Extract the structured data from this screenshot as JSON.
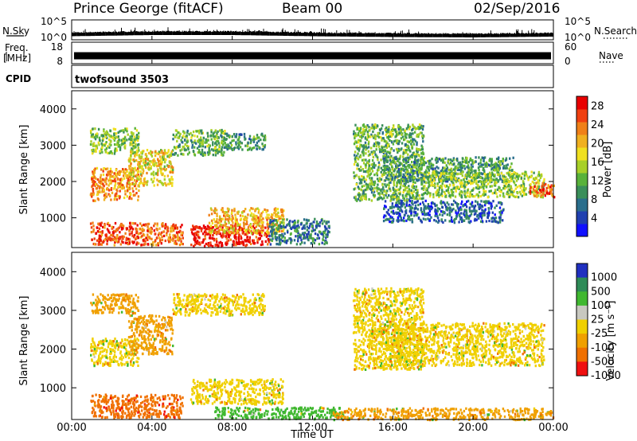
{
  "header": {
    "station": "Prince George (fitACF)",
    "beam": "Beam 00",
    "date": "02/Sep/2016"
  },
  "strip_labels": {
    "nsky": "N.Sky",
    "nsearch": "N.Search",
    "freq_line1": "Freq.",
    "freq_line2": "[MHz]",
    "nave": "Nave",
    "cpid": "CPID",
    "program": "twofsound 3503"
  },
  "colors": {
    "axis": "#000000",
    "background": "#ffffff",
    "ground_scatter": "#c8c8c0"
  },
  "chart_data": [
    {
      "type": "line",
      "panel": "noise",
      "left_axis_label": "N.Sky",
      "right_axis_label": "N.Search",
      "left_ticks": [
        "10^5",
        "10^0"
      ],
      "right_ticks": [
        "10^5",
        "10^0"
      ],
      "ylim": [
        0,
        5
      ],
      "yscale": "log",
      "x": [
        "00:00",
        "04:00",
        "08:00",
        "12:00",
        "16:00",
        "20:00",
        "00:00"
      ],
      "series": [
        {
          "values": [
            1.3,
            1.6,
            1.6,
            1.3,
            1.1,
            1.0,
            1.2
          ]
        }
      ]
    },
    {
      "type": "line",
      "panel": "frequency-nave",
      "left_axis_label": "Freq. [MHz]",
      "right_axis_label": "Nave",
      "left_ticks": [
        "18",
        "8"
      ],
      "right_ticks": [
        "60",
        "0"
      ],
      "ylim_freq": [
        8,
        18
      ],
      "ylim_nave": [
        0,
        60
      ],
      "x": [
        "00:00",
        "04:00",
        "08:00",
        "12:00",
        "16:00",
        "20:00",
        "00:00"
      ],
      "series": [
        {
          "values": [
            11.5,
            11.5,
            11.5,
            11.5,
            11.5,
            11.5,
            11.5
          ]
        }
      ]
    },
    {
      "type": "heatmap",
      "panel": "power",
      "ylabel": "Slant Range [km]",
      "yticks": [
        "1000",
        "2000",
        "3000",
        "4000"
      ],
      "ylim": [
        180,
        4500
      ],
      "xlim": [
        0,
        24
      ],
      "colorbar_label": "Power [dB]",
      "colorbar_ticks": [
        "4",
        "8",
        "12",
        "16",
        "20",
        "24",
        "28"
      ],
      "colorbar_range": [
        0,
        30
      ],
      "colorbar_colors": [
        "#1010ff",
        "#2040b0",
        "#2a6e8c",
        "#3a8f5a",
        "#58b23a",
        "#a8d028",
        "#f0e020",
        "#f0b020",
        "#f08018",
        "#f04010",
        "#e80000"
      ],
      "regions": [
        {
          "t0": 0.9,
          "t1": 3.3,
          "r0": 1500,
          "r1": 2400,
          "v": 22
        },
        {
          "t0": 0.9,
          "t1": 3.3,
          "r0": 2800,
          "r1": 3500,
          "v": 14
        },
        {
          "t0": 2.8,
          "t1": 5.0,
          "r0": 1900,
          "r1": 2900,
          "v": 18
        },
        {
          "t0": 5.0,
          "t1": 7.6,
          "r0": 2750,
          "r1": 3450,
          "v": 12
        },
        {
          "t0": 7.6,
          "t1": 9.6,
          "r0": 2900,
          "r1": 3350,
          "v": 10
        },
        {
          "t0": 0.9,
          "t1": 3.3,
          "r0": 280,
          "r1": 900,
          "v": 26
        },
        {
          "t0": 3.3,
          "t1": 5.5,
          "r0": 280,
          "r1": 900,
          "v": 24
        },
        {
          "t0": 5.9,
          "t1": 9.8,
          "r0": 250,
          "r1": 820,
          "v": 29
        },
        {
          "t0": 6.8,
          "t1": 10.6,
          "r0": 600,
          "r1": 1300,
          "v": 20
        },
        {
          "t0": 9.8,
          "t1": 12.8,
          "r0": 300,
          "r1": 1000,
          "v": 8
        },
        {
          "t0": 14.0,
          "t1": 17.5,
          "r0": 1500,
          "r1": 3600,
          "v": 12
        },
        {
          "t0": 15.5,
          "t1": 22.0,
          "r0": 2000,
          "r1": 2700,
          "v": 10
        },
        {
          "t0": 17.5,
          "t1": 23.5,
          "r0": 1600,
          "r1": 2300,
          "v": 14
        },
        {
          "t0": 15.5,
          "t1": 21.5,
          "r0": 900,
          "r1": 1500,
          "v": 6
        },
        {
          "t0": 22.8,
          "t1": 24.0,
          "r0": 1600,
          "r1": 2000,
          "v": 24
        }
      ]
    },
    {
      "type": "heatmap",
      "panel": "velocity",
      "ylabel": "Slant Range [km]",
      "yticks": [
        "1000",
        "2000",
        "3000",
        "4000"
      ],
      "ylim": [
        180,
        4500
      ],
      "xlim": [
        0,
        24
      ],
      "xticks": [
        "00:00",
        "04:00",
        "08:00",
        "12:00",
        "16:00",
        "20:00",
        "00:00"
      ],
      "xlabel": "Time UT",
      "colorbar_label": "Velocity [m s⁻¹]",
      "colorbar_ticks": [
        "1000",
        "500",
        "100",
        "25",
        "-25",
        "-100",
        "-500",
        "-1000"
      ],
      "colorbar_colors": [
        "#2030c0",
        "#2e8b57",
        "#40b830",
        "#c8c8c0",
        "#f0d000",
        "#f0a000",
        "#f07000",
        "#f01010"
      ],
      "regions": [
        {
          "t0": 0.9,
          "t1": 3.3,
          "r0": 1600,
          "r1": 2300,
          "v": 0
        },
        {
          "t0": 0.9,
          "t1": 3.3,
          "r0": 2950,
          "r1": 3450,
          "v": -40
        },
        {
          "t0": 2.8,
          "t1": 5.0,
          "r0": 1900,
          "r1": 2900,
          "v": -60
        },
        {
          "t0": 5.0,
          "t1": 9.6,
          "r0": 2900,
          "r1": 3450,
          "v": 0
        },
        {
          "t0": 0.9,
          "t1": 5.5,
          "r0": 250,
          "r1": 850,
          "v": -400
        },
        {
          "t0": 5.9,
          "t1": 10.5,
          "r0": 600,
          "r1": 1250,
          "v": 0
        },
        {
          "t0": 7.0,
          "t1": 13.5,
          "r0": 220,
          "r1": 520,
          "v": 200
        },
        {
          "t0": 14.0,
          "t1": 17.5,
          "r0": 1500,
          "r1": 3600,
          "v": 0
        },
        {
          "t0": 15.5,
          "t1": 23.5,
          "r0": 1600,
          "r1": 2700,
          "v": 0
        },
        {
          "t0": 13.0,
          "t1": 24.0,
          "r0": 200,
          "r1": 500,
          "v": -80
        }
      ]
    }
  ]
}
